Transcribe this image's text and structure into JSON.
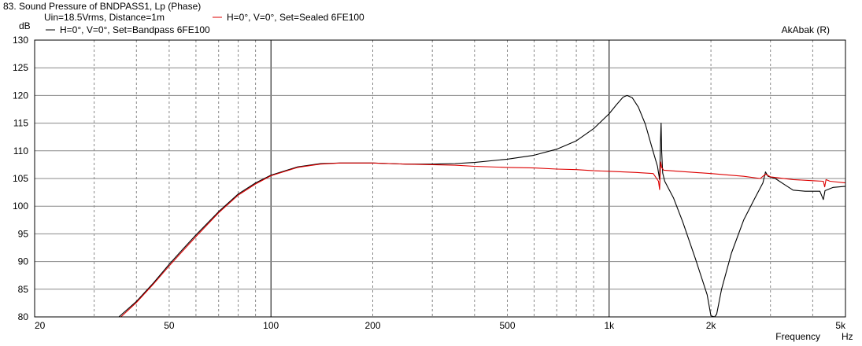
{
  "chart_data": {
    "type": "line",
    "title": "83. Sound Pressure of BNDPASS1, Lp (Phase)",
    "subtitle": "Uin=18.5Vrms, Distance=1m",
    "brand": "AkAbak (R)",
    "ylabel": "dB",
    "xlabel": "Frequency",
    "xunit": "Hz",
    "x_scale": "log",
    "xlim": [
      20,
      5000
    ],
    "ylim": [
      80,
      130
    ],
    "grid": true,
    "legend_placement": "top-left",
    "x_ticks": [
      {
        "value": 20,
        "label": "20"
      },
      {
        "value": 50,
        "label": "50"
      },
      {
        "value": 100,
        "label": "100"
      },
      {
        "value": 200,
        "label": "200"
      },
      {
        "value": 500,
        "label": "500"
      },
      {
        "value": 1000,
        "label": "1k"
      },
      {
        "value": 2000,
        "label": "2k"
      },
      {
        "value": 5000,
        "label": "5k"
      }
    ],
    "y_ticks": [
      {
        "value": 130,
        "label": "130"
      },
      {
        "value": 125,
        "label": "125"
      },
      {
        "value": 120,
        "label": "120"
      },
      {
        "value": 115,
        "label": "115"
      },
      {
        "value": 110,
        "label": "110"
      },
      {
        "value": 105,
        "label": "105"
      },
      {
        "value": 100,
        "label": "100"
      },
      {
        "value": 95,
        "label": "95"
      },
      {
        "value": 90,
        "label": "90"
      },
      {
        "value": 85,
        "label": "85"
      },
      {
        "value": 80,
        "label": "80"
      }
    ],
    "series": [
      {
        "name": "H=0°, V=0°, Set=Bandpass 6FE100",
        "color": "#000000",
        "points": [
          [
            20,
            80
          ],
          [
            35.5,
            80
          ],
          [
            40,
            82.8
          ],
          [
            45,
            86.2
          ],
          [
            50,
            89.5
          ],
          [
            55,
            92.3
          ],
          [
            60,
            94.8
          ],
          [
            70,
            99.0
          ],
          [
            80,
            102.2
          ],
          [
            90,
            104.2
          ],
          [
            100,
            105.6
          ],
          [
            120,
            107.1
          ],
          [
            140,
            107.7
          ],
          [
            160,
            107.8
          ],
          [
            200,
            107.8
          ],
          [
            250,
            107.6
          ],
          [
            300,
            107.6
          ],
          [
            350,
            107.7
          ],
          [
            400,
            107.9
          ],
          [
            500,
            108.5
          ],
          [
            600,
            109.2
          ],
          [
            700,
            110.3
          ],
          [
            800,
            111.8
          ],
          [
            900,
            114.0
          ],
          [
            1000,
            116.7
          ],
          [
            1050,
            118.3
          ],
          [
            1100,
            119.7
          ],
          [
            1130,
            120.0
          ],
          [
            1170,
            119.6
          ],
          [
            1220,
            117.9
          ],
          [
            1280,
            114.8
          ],
          [
            1340,
            110.5
          ],
          [
            1390,
            107.2
          ],
          [
            1410,
            104.8
          ],
          [
            1420,
            112.5
          ],
          [
            1425,
            115.0
          ],
          [
            1430,
            110.0
          ],
          [
            1440,
            106.0
          ],
          [
            1460,
            104.5
          ],
          [
            1550,
            101.5
          ],
          [
            1650,
            97.2
          ],
          [
            1800,
            90.5
          ],
          [
            1950,
            84.0
          ],
          [
            2000,
            80.2
          ],
          [
            2050,
            79.8
          ],
          [
            2080,
            80.5
          ],
          [
            2150,
            85.0
          ],
          [
            2300,
            91.5
          ],
          [
            2500,
            97.5
          ],
          [
            2700,
            101.5
          ],
          [
            2850,
            104.2
          ],
          [
            2900,
            106.2
          ],
          [
            2950,
            105.4
          ],
          [
            3100,
            105.0
          ],
          [
            3300,
            103.9
          ],
          [
            3500,
            102.9
          ],
          [
            3800,
            102.7
          ],
          [
            4200,
            102.7
          ],
          [
            4300,
            101.2
          ],
          [
            4350,
            102.8
          ],
          [
            4600,
            103.4
          ],
          [
            5000,
            103.6
          ]
        ]
      },
      {
        "name": "H=0°, V=0°, Set=Sealed 6FE100",
        "color": "#dd0000",
        "points": [
          [
            20,
            80
          ],
          [
            36,
            80
          ],
          [
            40,
            82.6
          ],
          [
            45,
            86.0
          ],
          [
            50,
            89.2
          ],
          [
            55,
            92.0
          ],
          [
            60,
            94.5
          ],
          [
            70,
            98.8
          ],
          [
            80,
            102.0
          ],
          [
            90,
            104.0
          ],
          [
            100,
            105.5
          ],
          [
            120,
            107.0
          ],
          [
            140,
            107.6
          ],
          [
            160,
            107.8
          ],
          [
            200,
            107.8
          ],
          [
            250,
            107.6
          ],
          [
            300,
            107.5
          ],
          [
            350,
            107.4
          ],
          [
            400,
            107.2
          ],
          [
            500,
            107.0
          ],
          [
            600,
            106.9
          ],
          [
            700,
            106.7
          ],
          [
            800,
            106.6
          ],
          [
            900,
            106.4
          ],
          [
            1000,
            106.3
          ],
          [
            1200,
            106.1
          ],
          [
            1350,
            105.9
          ],
          [
            1400,
            104.5
          ],
          [
            1410,
            103.0
          ],
          [
            1420,
            108.0
          ],
          [
            1430,
            107.0
          ],
          [
            1450,
            106.5
          ],
          [
            1600,
            106.3
          ],
          [
            2000,
            105.9
          ],
          [
            2500,
            105.4
          ],
          [
            2800,
            105.0
          ],
          [
            2900,
            105.8
          ],
          [
            3000,
            105.3
          ],
          [
            3500,
            104.8
          ],
          [
            4000,
            104.6
          ],
          [
            4300,
            104.5
          ],
          [
            4340,
            103.5
          ],
          [
            4380,
            104.8
          ],
          [
            4500,
            104.5
          ],
          [
            5000,
            104.2
          ]
        ]
      }
    ]
  }
}
